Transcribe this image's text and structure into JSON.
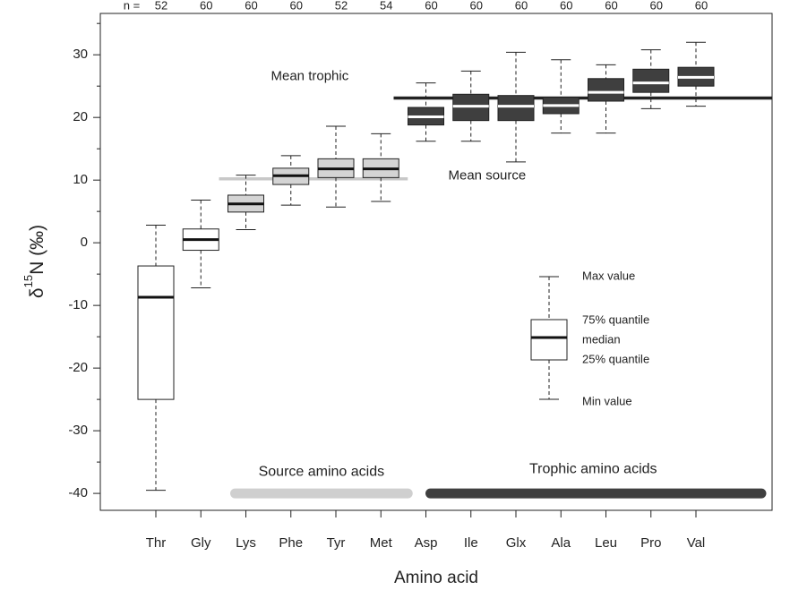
{
  "chart_data": {
    "type": "boxplot",
    "xlabel": "Amino acid",
    "ylabel": {
      "symbol": "δ",
      "sup": "15",
      "rest": "N  (‰)"
    },
    "n_label": "n =",
    "n": [
      52,
      60,
      60,
      60,
      52,
      54,
      60,
      60,
      60,
      60,
      60,
      60,
      60
    ],
    "categories": [
      "Thr",
      "Gly",
      "Lys",
      "Phe",
      "Tyr",
      "Met",
      "Asp",
      "Ile",
      "Glx",
      "Ala",
      "Leu",
      "Pro",
      "Val"
    ],
    "min": [
      -39.5,
      -7.2,
      2.1,
      6.0,
      5.7,
      6.6,
      16.2,
      16.2,
      12.9,
      17.5,
      17.5,
      21.4,
      21.8
    ],
    "q1": [
      -25.0,
      -1.2,
      4.9,
      9.3,
      10.4,
      10.4,
      18.8,
      19.5,
      19.5,
      20.6,
      22.6,
      24.0,
      25.0
    ],
    "median": [
      -8.7,
      0.5,
      6.2,
      10.7,
      11.8,
      11.8,
      20.1,
      21.8,
      21.8,
      21.9,
      24.0,
      25.5,
      26.4
    ],
    "q3": [
      -3.7,
      2.2,
      7.6,
      11.9,
      13.4,
      13.4,
      21.6,
      23.7,
      23.5,
      23.2,
      26.2,
      27.7,
      28.0
    ],
    "max": [
      2.8,
      6.8,
      10.8,
      13.9,
      18.6,
      17.4,
      25.5,
      27.4,
      30.4,
      29.2,
      28.4,
      30.8,
      32.0
    ],
    "box_colors": [
      "#ffffff",
      "#ffffff",
      "#d4d4d4",
      "#d4d4d4",
      "#d4d4d4",
      "#d4d4d4",
      "#3f3f3f",
      "#3f3f3f",
      "#3f3f3f",
      "#3f3f3f",
      "#3f3f3f",
      "#3f3f3f",
      "#3f3f3f"
    ],
    "median_colors": [
      "#111111",
      "#111111",
      "#111111",
      "#111111",
      "#111111",
      "#111111",
      "#ffffff",
      "#ffffff",
      "#ffffff",
      "#ffffff",
      "#ffffff",
      "#ffffff",
      "#ffffff"
    ],
    "reference_lines": [
      {
        "label": "Mean source",
        "value": 10.2,
        "color": "#c8c8c8"
      },
      {
        "label": "Mean trophic",
        "value": 23.1,
        "color": "#222222"
      }
    ],
    "groups": [
      {
        "label": "Source amino acids",
        "color": "#cfcfcf"
      },
      {
        "label": "Trophic amino acids",
        "color": "#3f3f3f"
      }
    ],
    "legend_labels": [
      "Max value",
      "75% quantile",
      "median",
      "25% quantile",
      "Min value"
    ],
    "ylim": [
      -42.7,
      36.6
    ],
    "yticks": [
      -40,
      -30,
      -20,
      -10,
      0,
      10,
      20,
      30
    ],
    "yminor_ticks": [
      -35,
      -25,
      -15,
      -5,
      5,
      15,
      25,
      35
    ]
  }
}
